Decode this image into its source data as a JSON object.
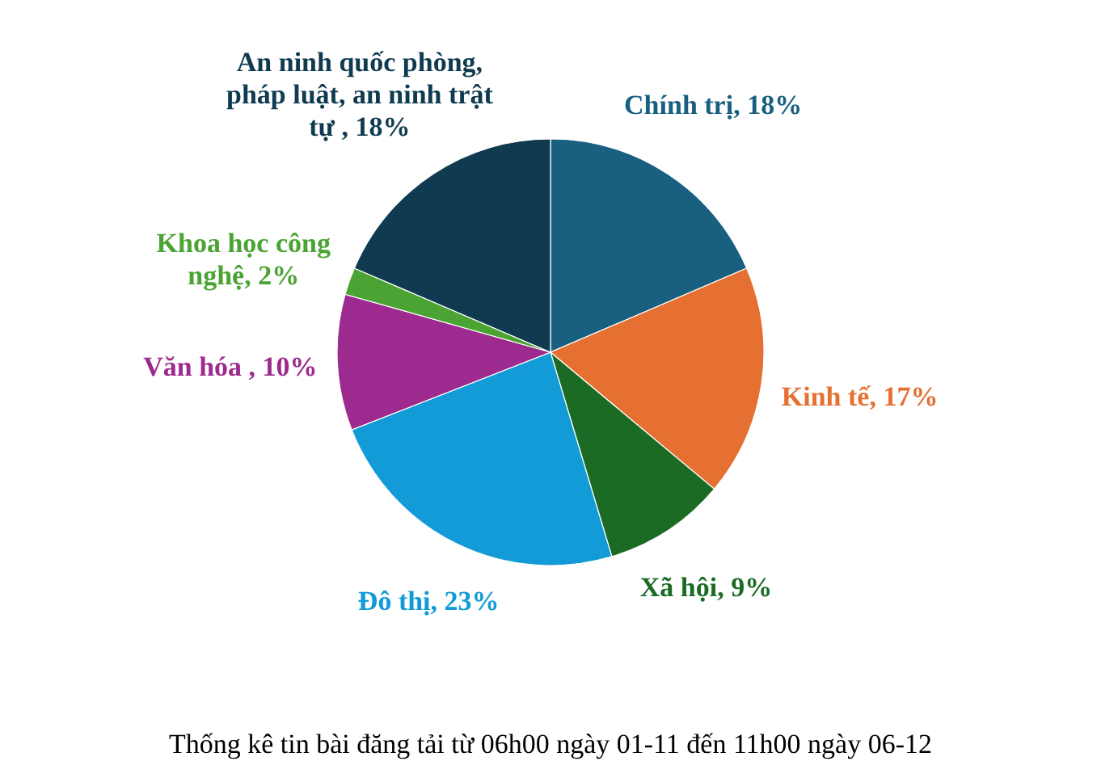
{
  "chart_data": {
    "type": "pie",
    "title": "Thống kê tin bài đăng tải từ 06h00 ngày 01-11 đến 11h00 ngày 06-12",
    "categories": [
      "Chính trị",
      "Kinh tế",
      "Xã hội",
      "Đô thị",
      "Văn hóa ",
      "Khoa học công nghệ",
      "An ninh quốc phòng, pháp luật, an ninh trật tự "
    ],
    "values": [
      18,
      17,
      9,
      23,
      10,
      2,
      18
    ],
    "colors": [
      "#185f80",
      "#e67031",
      "#1c6b24",
      "#129bd7",
      "#9d2a8e",
      "#4aa332",
      "#0f3a50"
    ],
    "value_labels": [
      "18%",
      "17%",
      "9%",
      "23%",
      "10%",
      "2%",
      "18%"
    ]
  }
}
